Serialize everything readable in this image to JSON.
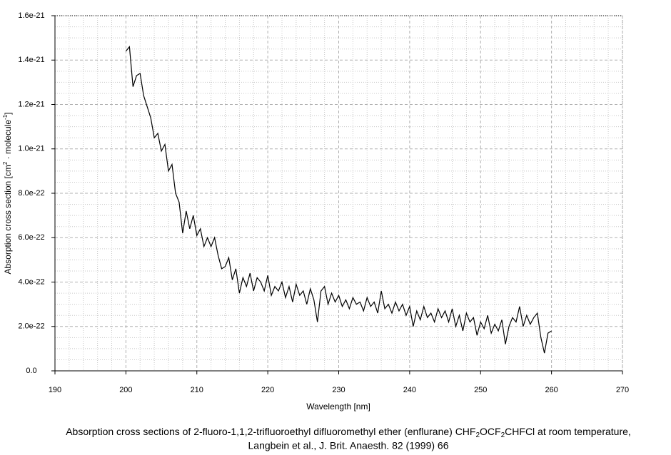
{
  "chart_data": {
    "type": "line",
    "xlabel": "Wavelength [nm]",
    "ylabel_parts": [
      "Absorption cross section [cm",
      "2",
      " · molecule",
      "-1",
      "]"
    ],
    "caption_line1_parts": [
      "Absorption cross sections of 2-fluoro-1,1,2-trifluoroethyl difluoromethyl ether (enflurane) CHF",
      "2",
      "OCF",
      "2",
      "CHFCl at room temperature,"
    ],
    "caption_line2": "Langbein et al., J. Brit. Anaesth. 82 (1999) 66",
    "xlim": [
      190,
      270
    ],
    "xticks": [
      190,
      200,
      210,
      220,
      230,
      240,
      250,
      260,
      270
    ],
    "ylim": [
      0,
      1.6e-21
    ],
    "yticks": [
      {
        "value": 0,
        "label": "0.0"
      },
      {
        "value": 2e-22,
        "label": "2.0e-22"
      },
      {
        "value": 4e-22,
        "label": "4.0e-22"
      },
      {
        "value": 6e-22,
        "label": "6.0e-22"
      },
      {
        "value": 8e-22,
        "label": "8.0e-22"
      },
      {
        "value": 1e-21,
        "label": "1.0e-21"
      },
      {
        "value": 1.2e-21,
        "label": "1.2e-21"
      },
      {
        "value": 1.4e-21,
        "label": "1.4e-21"
      },
      {
        "value": 1.6e-21,
        "label": "1.6e-21"
      }
    ],
    "grid": true,
    "series": [
      {
        "color": "#000000",
        "x": [
          200,
          200.5,
          201,
          201.5,
          202,
          202.5,
          203,
          203.5,
          204,
          204.5,
          205,
          205.5,
          206,
          206.5,
          207,
          207.5,
          208,
          208.5,
          209,
          209.5,
          210,
          210.5,
          211,
          211.5,
          212,
          212.5,
          213,
          213.5,
          214,
          214.5,
          215,
          215.5,
          216,
          216.5,
          217,
          217.5,
          218,
          218.5,
          219,
          219.5,
          220,
          220.5,
          221,
          221.5,
          222,
          222.5,
          223,
          223.5,
          224,
          224.5,
          225,
          225.5,
          226,
          226.5,
          227,
          227.5,
          228,
          228.5,
          229,
          229.5,
          230,
          230.5,
          231,
          231.5,
          232,
          232.5,
          233,
          233.5,
          234,
          234.5,
          235,
          235.5,
          236,
          236.5,
          237,
          237.5,
          238,
          238.5,
          239,
          239.5,
          240,
          240.5,
          241,
          241.5,
          242,
          242.5,
          243,
          243.5,
          244,
          244.5,
          245,
          245.5,
          246,
          246.5,
          247,
          247.5,
          248,
          248.5,
          249,
          249.5,
          250,
          250.5,
          251,
          251.5,
          252,
          252.5,
          253,
          253.5,
          254,
          254.5,
          255,
          255.5,
          256,
          256.5,
          257,
          257.5,
          258,
          258.5,
          259,
          259.5,
          260
        ],
        "values": [
          1.44e-21,
          1.46e-21,
          1.28e-21,
          1.33e-21,
          1.34e-21,
          1.24e-21,
          1.19e-21,
          1.14e-21,
          1.05e-21,
          1.07e-21,
          9.9e-22,
          1.02e-21,
          9e-22,
          9.3e-22,
          8e-22,
          7.6e-22,
          6.2e-22,
          7.2e-22,
          6.4e-22,
          7e-22,
          6.1e-22,
          6.4e-22,
          5.6e-22,
          6e-22,
          5.6e-22,
          6e-22,
          5.2e-22,
          4.6e-22,
          4.7e-22,
          5.1e-22,
          4.1e-22,
          4.6e-22,
          3.5e-22,
          4.2e-22,
          3.8e-22,
          4.4e-22,
          3.6e-22,
          4.2e-22,
          4e-22,
          3.6e-22,
          4.3e-22,
          3.4e-22,
          3.8e-22,
          3.6e-22,
          4e-22,
          3.3e-22,
          3.8e-22,
          3.1e-22,
          3.9e-22,
          3.4e-22,
          3.6e-22,
          3e-22,
          3.7e-22,
          3.2e-22,
          2.2e-22,
          3.6e-22,
          3.8e-22,
          3e-22,
          3.5e-22,
          3.1e-22,
          3.4e-22,
          2.9e-22,
          3.2e-22,
          2.8e-22,
          3.3e-22,
          3e-22,
          3.1e-22,
          2.7e-22,
          3.3e-22,
          2.9e-22,
          3.1e-22,
          2.6e-22,
          3.6e-22,
          2.8e-22,
          3e-22,
          2.6e-22,
          3.1e-22,
          2.7e-22,
          3e-22,
          2.5e-22,
          2.9e-22,
          2e-22,
          2.7e-22,
          2.3e-22,
          2.9e-22,
          2.4e-22,
          2.6e-22,
          2.2e-22,
          2.8e-22,
          2.4e-22,
          2.7e-22,
          2.2e-22,
          2.8e-22,
          2e-22,
          2.5e-22,
          1.8e-22,
          2.6e-22,
          2.2e-22,
          2.4e-22,
          1.6e-22,
          2.2e-22,
          1.9e-22,
          2.5e-22,
          1.7e-22,
          2.1e-22,
          1.8e-22,
          2.3e-22,
          1.2e-22,
          2e-22,
          2.4e-22,
          2.2e-22,
          2.9e-22,
          2e-22,
          2.5e-22,
          2.1e-22,
          2.4e-22,
          2.6e-22,
          1.5e-22,
          8e-23,
          1.7e-22,
          1.8e-22
        ]
      }
    ]
  }
}
